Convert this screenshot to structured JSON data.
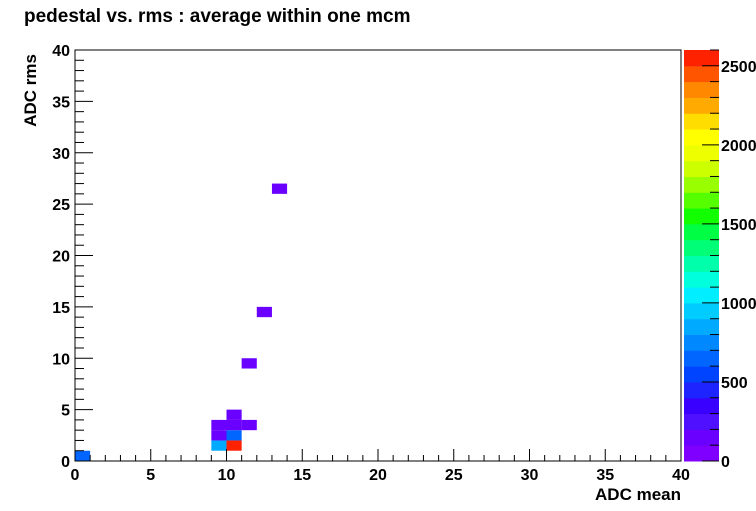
{
  "chart_data": {
    "type": "heatmap",
    "title": "pedestal vs. rms : average within one mcm",
    "xlabel": "ADC mean",
    "ylabel": "ADC rms",
    "xlim": [
      0,
      40
    ],
    "ylim": [
      0,
      40
    ],
    "x_ticks": [
      "0",
      "5",
      "10",
      "15",
      "20",
      "25",
      "30",
      "35",
      "40"
    ],
    "y_ticks": [
      "0",
      "5",
      "10",
      "15",
      "20",
      "25",
      "30",
      "35",
      "40"
    ],
    "z_ticks": [
      "0",
      "500",
      "1000",
      "1500",
      "2000",
      "2500"
    ],
    "zlim": [
      0,
      2600
    ],
    "grid": false,
    "bins": [
      {
        "x": 0,
        "y": 0,
        "z": 650
      },
      {
        "x": 9,
        "y": 1,
        "z": 800
      },
      {
        "x": 10,
        "y": 1,
        "z": 2600
      },
      {
        "x": 9,
        "y": 2,
        "z": 150
      },
      {
        "x": 10,
        "y": 2,
        "z": 650
      },
      {
        "x": 9,
        "y": 3,
        "z": 100
      },
      {
        "x": 10,
        "y": 3,
        "z": 100
      },
      {
        "x": 11,
        "y": 3,
        "z": 100
      },
      {
        "x": 10,
        "y": 4,
        "z": 100
      },
      {
        "x": 11,
        "y": 9,
        "z": 100
      },
      {
        "x": 12,
        "y": 14,
        "z": 100
      },
      {
        "x": 13,
        "y": 26,
        "z": 100
      }
    ],
    "palette": [
      "#8000ff",
      "#6a00ff",
      "#4f10ff",
      "#3a00ff",
      "#1e24ff",
      "#0044ff",
      "#0066ff",
      "#0088ff",
      "#00aaff",
      "#00ccff",
      "#00eeff",
      "#00ffdd",
      "#00ffaa",
      "#00ff77",
      "#00ff44",
      "#11ff00",
      "#55ff00",
      "#99ff00",
      "#ccff00",
      "#eeff00",
      "#ffff00",
      "#ffdd00",
      "#ffaa00",
      "#ff8800",
      "#ff5500",
      "#ff2200"
    ]
  }
}
